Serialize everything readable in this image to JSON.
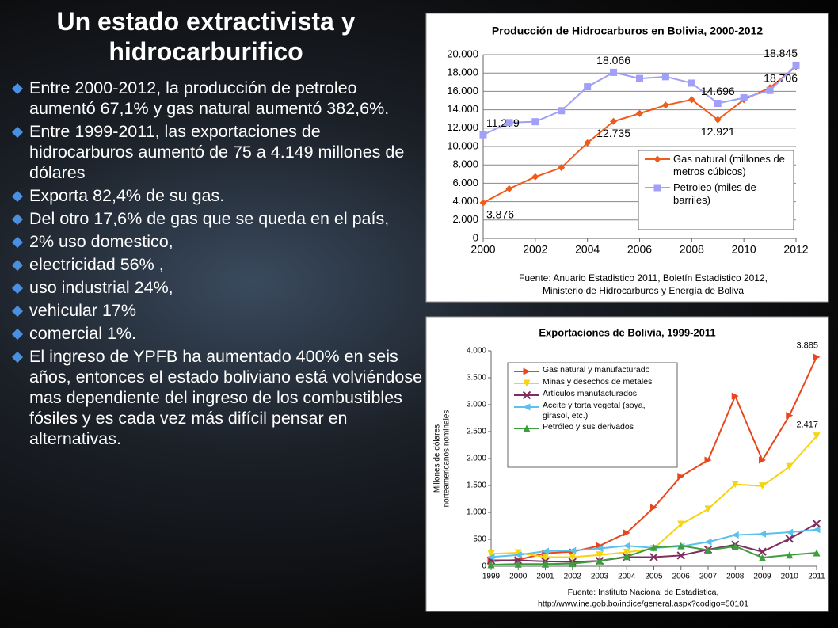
{
  "slide": {
    "title": "Un estado extractivista y hidrocarburifico",
    "bullets": [
      "Entre 2000-2012, la producción de petroleo aumentó 67,1% y gas natural aumentó 382,6%.",
      "Entre 1999-2011, las exportaciones de hidrocarburos aumentó de 75 a 4.149 millones de dólares",
      "Exporta 82,4% de su gas.",
      "Del otro 17,6% de gas que se queda en el país,",
      "2% uso domestico,",
      "electricidad 56% ,",
      "uso industrial 24%,",
      "vehicular 17%",
      "comercial 1%.",
      "El ingreso de YPFB ha aumentado 400% en seis años, entonces el estado boliviano está volviéndose mas dependiente del ingreso de los combustibles fósiles y es cada vez más difícil pensar en alternativas."
    ]
  },
  "chart_data": [
    {
      "type": "line",
      "title": "Producción de Hidrocarburos en Bolivia, 2000-2012",
      "x": [
        2000,
        2001,
        2002,
        2003,
        2004,
        2005,
        2006,
        2007,
        2008,
        2009,
        2010,
        2011,
        2012
      ],
      "xlim": [
        2000,
        2012
      ],
      "xticks": [
        2000,
        2002,
        2004,
        2006,
        2008,
        2010,
        2012
      ],
      "ylim": [
        0,
        20000
      ],
      "yticks": [
        0,
        {
          "value": 2000,
          "label": "2.000"
        },
        {
          "value": 4000,
          "label": "4.000"
        },
        {
          "value": 6000,
          "label": "6.000"
        },
        {
          "value": 8000,
          "label": "8.000"
        },
        {
          "value": 10000,
          "label": "10.000"
        },
        {
          "value": 12000,
          "label": "12.000"
        },
        {
          "value": 14000,
          "label": "14.000"
        },
        {
          "value": 16000,
          "label": "16.000"
        },
        {
          "value": 18000,
          "label": "18.000"
        },
        {
          "value": 20000,
          "label": "20.000"
        }
      ],
      "grid": true,
      "legend": "right",
      "series": [
        {
          "name": "Gas natural (millones de metros cúbicos)",
          "color": "#f05a1a",
          "marker": "diamond",
          "values": [
            3876,
            5400,
            6700,
            7700,
            10400,
            12735,
            13600,
            14500,
            15100,
            12921,
            15100,
            16400,
            18706
          ],
          "value_labels": [
            "3.876",
            null,
            null,
            null,
            null,
            "12.735",
            null,
            null,
            null,
            "12.921",
            null,
            null,
            "18.706"
          ]
        },
        {
          "name": "Petroleo (miles de barriles)",
          "color": "#a0a0f8",
          "marker": "square",
          "values": [
            11279,
            12600,
            12700,
            13900,
            16500,
            18066,
            17400,
            17600,
            16900,
            14696,
            15300,
            16100,
            18845
          ],
          "value_labels": [
            "11.279",
            null,
            null,
            null,
            null,
            "18.066",
            null,
            null,
            null,
            "14.696",
            null,
            null,
            "18.845"
          ]
        }
      ],
      "source": [
        "Fuente: Anuario Estadistico 2011, Boletín Estadistico 2012,",
        "Ministerio de Hidrocarburos y Energía de Boliva"
      ]
    },
    {
      "type": "line",
      "title": "Exportaciones de Bolivia, 1999-2011",
      "x": [
        1999,
        2000,
        2001,
        2002,
        2003,
        2004,
        2005,
        2006,
        2007,
        2008,
        2009,
        2010,
        2011
      ],
      "xlim": [
        1999,
        2011
      ],
      "xticks": [
        1999,
        2000,
        2001,
        2002,
        2003,
        2004,
        2005,
        2006,
        2007,
        2008,
        2009,
        2010,
        2011
      ],
      "ylim": [
        0,
        4000
      ],
      "yticks": [
        0,
        500,
        {
          "value": 1000,
          "label": "1.000"
        },
        {
          "value": 1500,
          "label": "1.500"
        },
        {
          "value": 2000,
          "label": "2.000"
        },
        {
          "value": 2500,
          "label": "2.500"
        },
        {
          "value": 3000,
          "label": "3.000"
        },
        {
          "value": 3500,
          "label": "3.500"
        },
        {
          "value": 4000,
          "label": "4.000"
        }
      ],
      "grid": false,
      "legend": "upper left",
      "ylabel": [
        "Millones de dólares",
        "norteamericanos nominales"
      ],
      "series": [
        {
          "name": "Gas natural y manufacturado",
          "color": "#e8461e",
          "marker": "triangle-right",
          "values": [
            90,
            120,
            240,
            270,
            380,
            620,
            1090,
            1670,
            1970,
            3160,
            1970,
            2800,
            3885
          ],
          "value_labels": [
            null,
            null,
            null,
            null,
            null,
            null,
            null,
            null,
            null,
            null,
            null,
            null,
            "3.885"
          ]
        },
        {
          "name": "Minas y desechos de metales",
          "color": "#f5d410",
          "marker": "triangle-down",
          "values": [
            230,
            250,
            170,
            170,
            210,
            260,
            330,
            780,
            1060,
            1520,
            1490,
            1850,
            2417
          ],
          "value_labels": [
            null,
            null,
            null,
            null,
            null,
            null,
            null,
            null,
            null,
            null,
            null,
            null,
            "2.417"
          ]
        },
        {
          "name": "Artículos manufacturados",
          "color": "#7f2f5f",
          "marker": "x",
          "values": [
            110,
            110,
            90,
            80,
            100,
            170,
            170,
            200,
            310,
            400,
            270,
            510,
            790
          ]
        },
        {
          "name": "Aceite y torta vegetal (soya, girasol, etc.)",
          "color": "#5bc0eb",
          "marker": "triangle-left",
          "values": [
            170,
            210,
            280,
            290,
            330,
            380,
            340,
            370,
            450,
            580,
            600,
            630,
            680
          ]
        },
        {
          "name": "Petróleo y sus derivados",
          "color": "#3c9e3c",
          "marker": "triangle-up",
          "values": [
            30,
            40,
            40,
            50,
            100,
            180,
            350,
            380,
            300,
            370,
            160,
            210,
            250
          ]
        }
      ],
      "source": [
        "Fuente: Instituto Nacional de Estadística,",
        "http://www.ine.gob.bo/indice/general.aspx?codigo=50101"
      ]
    }
  ]
}
